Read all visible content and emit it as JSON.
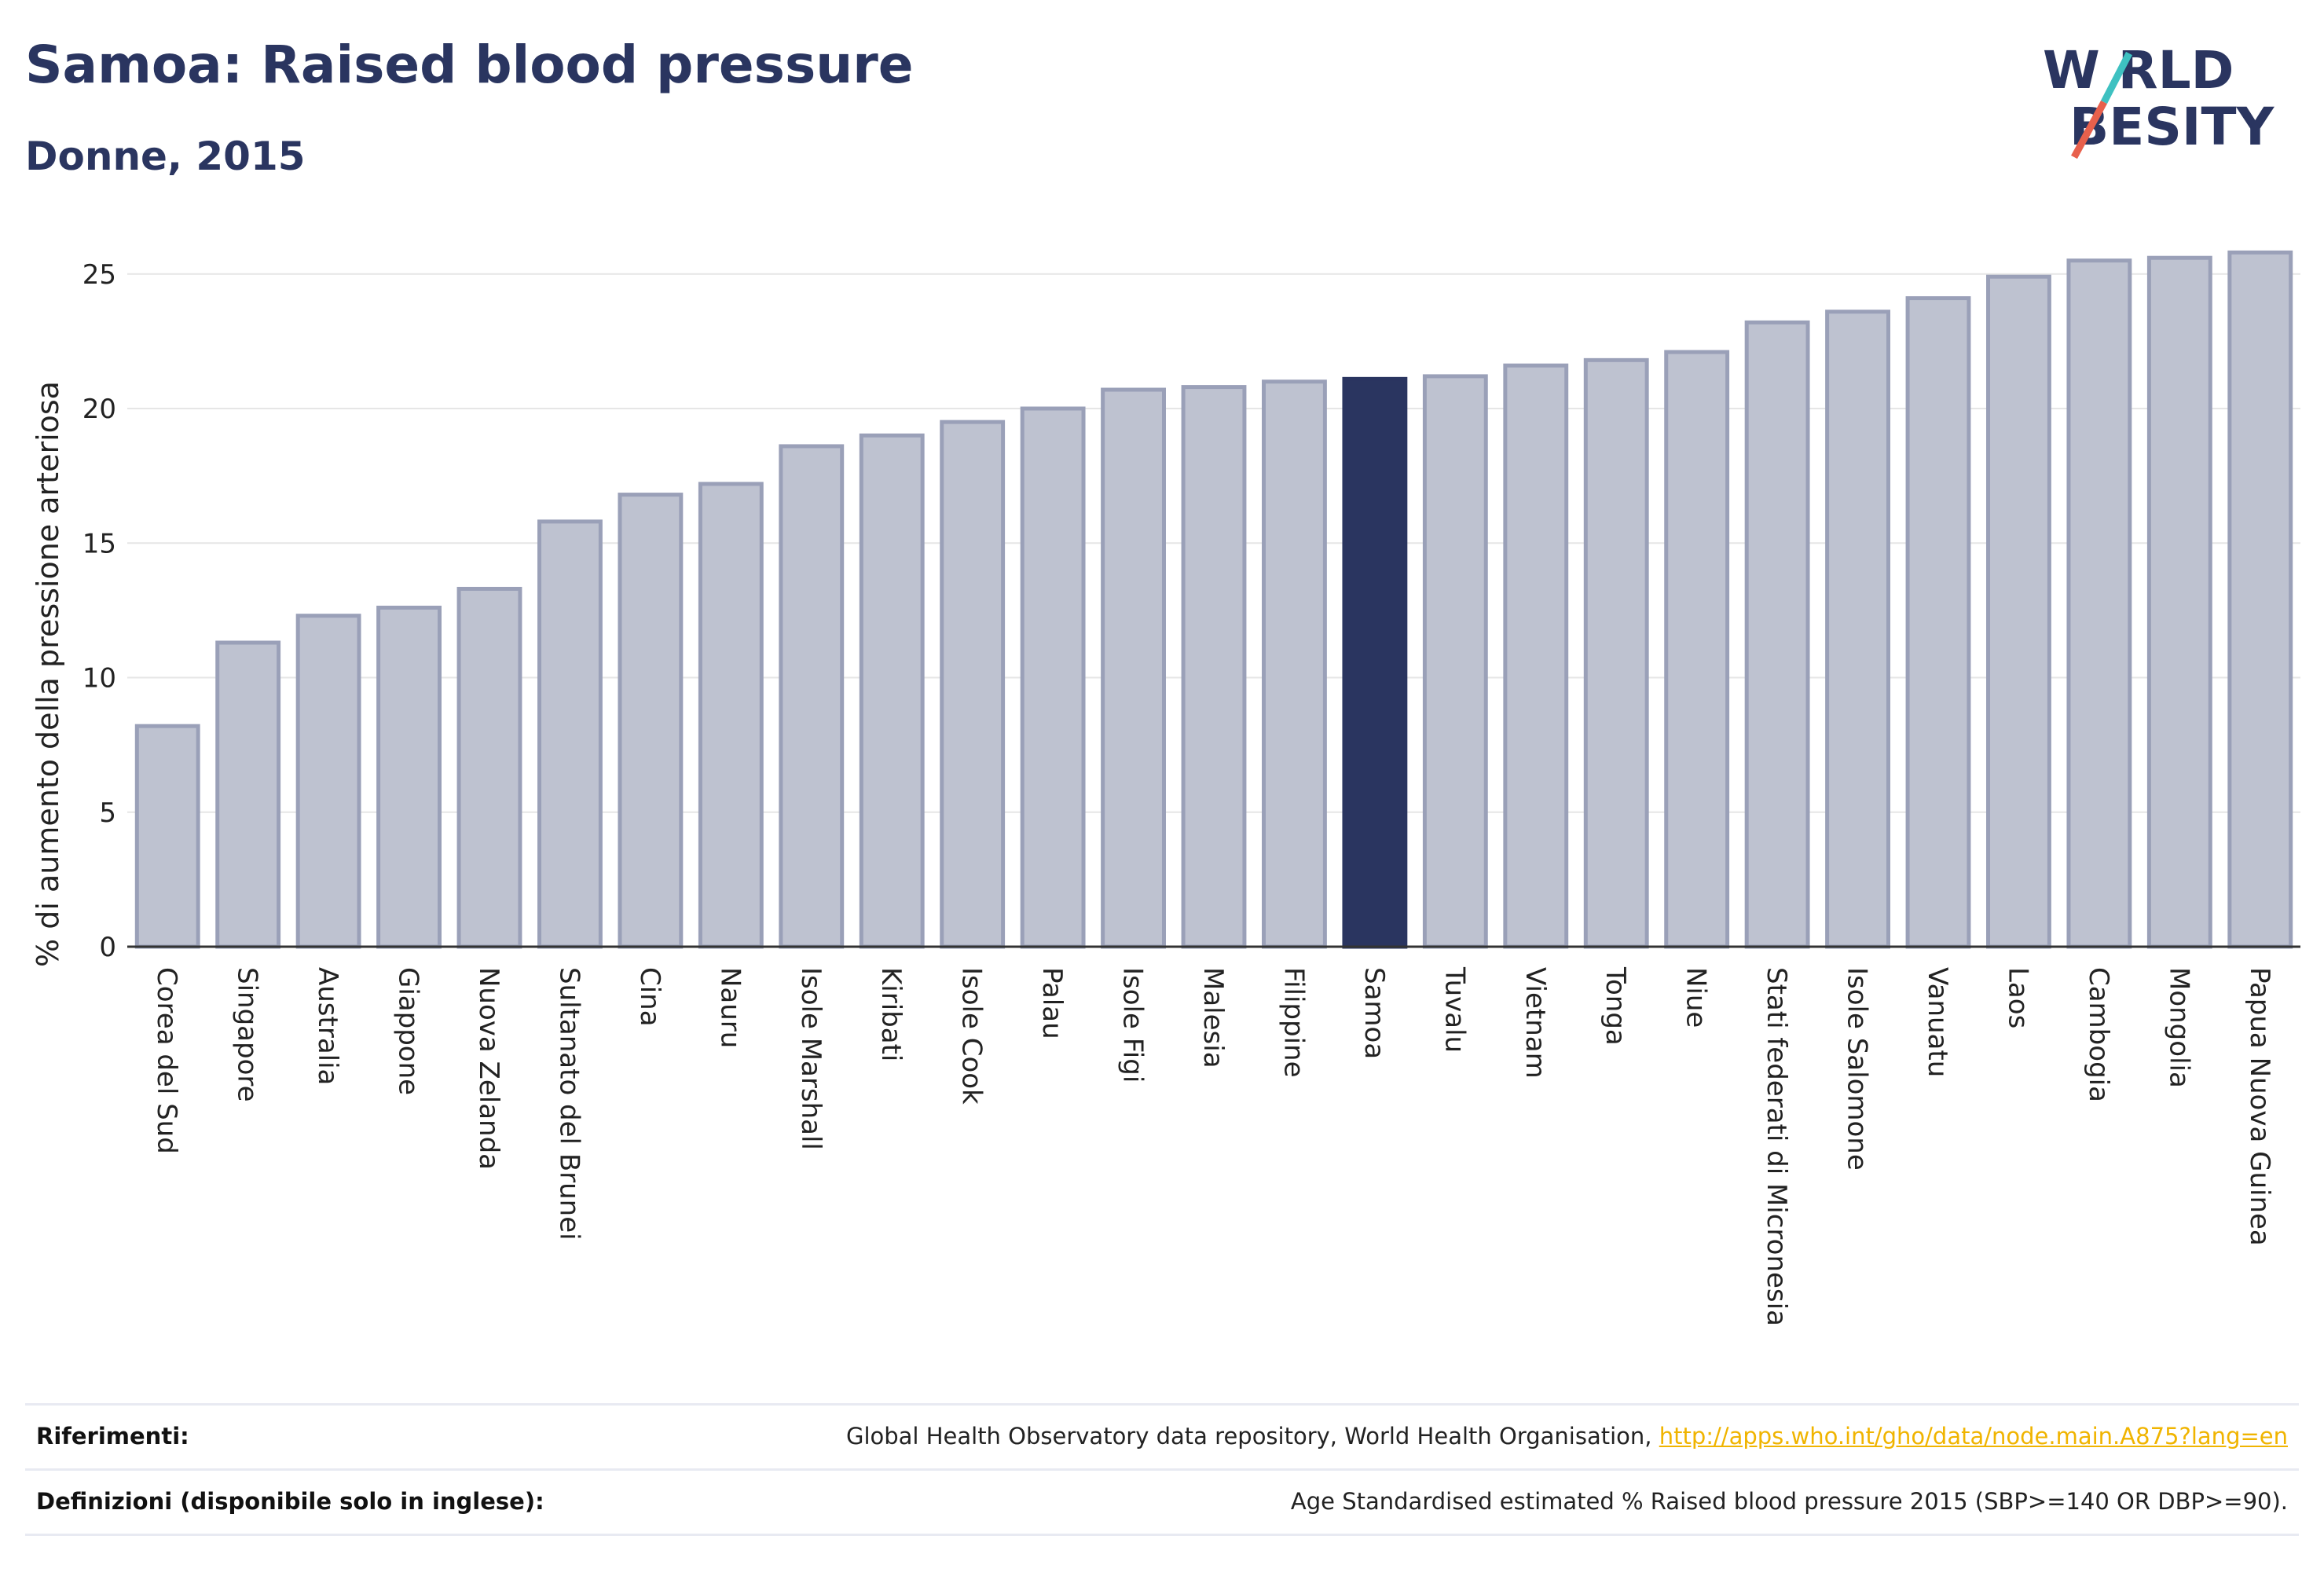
{
  "header": {
    "title": "Samoa: Raised blood pressure",
    "subtitle": "Donne, 2015"
  },
  "logo": {
    "line1": "W RLD",
    "line2": "BESITY",
    "text": "WORLD OBESITY",
    "slash_colors": [
      "#e8604c",
      "#3ec1c1"
    ],
    "text_color": "#2a3560"
  },
  "colors": {
    "bar_fill": "#bec2d0",
    "bar_stroke": "#9aa0b8",
    "highlight": "#2a3560",
    "grid": "#e6e6e6",
    "axis": "#333333"
  },
  "chart_data": {
    "type": "bar",
    "title": "",
    "xlabel": "",
    "ylabel": "% di aumento della pressione arteriosa",
    "ylim": [
      0,
      26.5
    ],
    "yticks": [
      0,
      5,
      10,
      15,
      20,
      25
    ],
    "grid": true,
    "highlight": "Samoa",
    "categories": [
      "Corea del Sud",
      "Singapore",
      "Australia",
      "Giappone",
      "Nuova Zelanda",
      "Sultanato del Brunei",
      "Cina",
      "Nauru",
      "Isole Marshall",
      "Kiribati",
      "Isole Cook",
      "Palau",
      "Isole Figi",
      "Malesia",
      "Filippine",
      "Samoa",
      "Tuvalu",
      "Vietnam",
      "Tonga",
      "Niue",
      "Stati federati di Micronesia",
      "Isole Salomone",
      "Vanuatu",
      "Laos",
      "Cambogia",
      "Mongolia",
      "Papua Nuova Guinea"
    ],
    "values": [
      8.2,
      11.3,
      12.3,
      12.6,
      13.3,
      15.8,
      16.8,
      17.2,
      18.6,
      19.0,
      19.5,
      20.0,
      20.7,
      20.8,
      21.0,
      21.1,
      21.2,
      21.6,
      21.8,
      22.1,
      23.2,
      23.6,
      24.1,
      24.9,
      25.5,
      25.6,
      25.8
    ]
  },
  "footer": {
    "references_label": "Riferimenti:",
    "references_text": "Global Health Observatory data repository, World Health Organisation, ",
    "references_link": "http://apps.who.int/gho/data/node.main.A875?lang=en",
    "definitions_label": "Definizioni (disponibile solo in inglese):",
    "definitions_text": "Age Standardised estimated % Raised blood pressure 2015 (SBP>=140 OR DBP>=90)."
  }
}
